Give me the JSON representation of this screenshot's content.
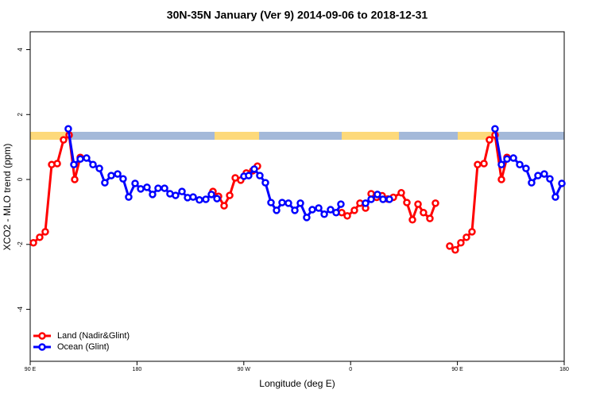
{
  "chart_data": {
    "type": "line",
    "title": "30N-35N January (Ver 9)   2014-09-06 to 2018-12-31",
    "x_label": "Longitude (deg E)",
    "y_label": "XCO2 - MLO trend (ppm)",
    "xlim": [
      90,
      540
    ],
    "ylim": [
      -5.6,
      4.55
    ],
    "xticks": [
      {
        "value": 90,
        "label": "90 E"
      },
      {
        "value": 180,
        "label": "180"
      },
      {
        "value": 270,
        "label": "90 W"
      },
      {
        "value": 360,
        "label": "0"
      },
      {
        "value": 450,
        "label": "90 E"
      },
      {
        "value": 540,
        "label": "180"
      }
    ],
    "yticks": [
      -4,
      -2,
      0,
      2,
      4
    ],
    "legend": "bottomleft",
    "series": [
      {
        "name": "Land (Nadir&Glint)",
        "color": "#ff0000",
        "x": [
          92.7,
          98.0,
          102.7,
          108.1,
          112.8,
          118.1,
          122.8,
          127.5,
          132.2,
          244.0,
          248.7,
          253.4,
          258.1,
          262.8,
          267.4,
          272.1,
          277.5,
          281.5,
          352.5,
          357.2,
          363.2,
          367.9,
          372.6,
          377.3,
          382.0,
          386.6,
          391.3,
          396.0,
          402.7,
          407.4,
          412.1,
          416.8,
          421.4,
          426.8,
          431.5,
          443.5,
          448.2,
          452.9,
          457.6,
          462.3,
          467.0,
          472.4,
          477.0,
          481.7,
          487.1,
          491.8
        ],
        "values": [
          -1.95,
          -1.78,
          -1.61,
          0.46,
          0.49,
          1.22,
          1.37,
          0.0,
          0.68,
          -0.37,
          -0.52,
          -0.81,
          -0.49,
          0.05,
          -0.02,
          0.2,
          0.27,
          0.41,
          -1.02,
          -1.12,
          -0.95,
          -0.73,
          -0.88,
          -0.44,
          -0.55,
          -0.5,
          -0.6,
          -0.55,
          -0.41,
          -0.71,
          -1.24,
          -0.76,
          -1.02,
          -1.2,
          -0.73,
          -2.05,
          -2.17,
          -1.95,
          -1.78,
          -1.61,
          0.46,
          0.49,
          1.22,
          1.37,
          0.0,
          0.68
        ]
      },
      {
        "name": "Ocean (Glint)",
        "color": "#0000ff",
        "x": [
          122.1,
          126.8,
          132.2,
          137.5,
          142.9,
          148.3,
          152.9,
          158.3,
          163.7,
          168.3,
          173.0,
          178.4,
          183.1,
          188.4,
          193.1,
          197.8,
          203.2,
          207.8,
          212.5,
          217.9,
          222.6,
          227.3,
          232.6,
          238.0,
          242.7,
          247.4,
          270.1,
          274.1,
          278.8,
          283.5,
          288.2,
          292.9,
          297.6,
          302.3,
          307.6,
          313.0,
          317.7,
          323.0,
          327.7,
          333.1,
          337.8,
          343.1,
          347.8,
          351.8,
          372.6,
          377.3,
          382.6,
          387.3,
          392.7,
          481.7,
          487.1,
          491.8,
          497.2,
          502.5,
          507.8,
          512.5,
          517.9,
          523.2,
          527.9,
          532.6,
          538.0
        ],
        "values": [
          1.56,
          0.46,
          0.63,
          0.66,
          0.46,
          0.34,
          -0.1,
          0.12,
          0.17,
          0.02,
          -0.54,
          -0.12,
          -0.29,
          -0.24,
          -0.46,
          -0.27,
          -0.27,
          -0.44,
          -0.49,
          -0.37,
          -0.56,
          -0.54,
          -0.63,
          -0.61,
          -0.46,
          -0.59,
          0.1,
          0.12,
          0.32,
          0.12,
          -0.1,
          -0.71,
          -0.95,
          -0.71,
          -0.73,
          -0.95,
          -0.73,
          -1.17,
          -0.93,
          -0.88,
          -1.07,
          -0.93,
          -1.02,
          -0.76,
          -0.73,
          -0.61,
          -0.46,
          -0.61,
          -0.61,
          1.56,
          0.46,
          0.63,
          0.66,
          0.46,
          0.34,
          -0.1,
          0.12,
          0.17,
          0.02,
          -0.54,
          -0.12
        ]
      }
    ]
  }
}
